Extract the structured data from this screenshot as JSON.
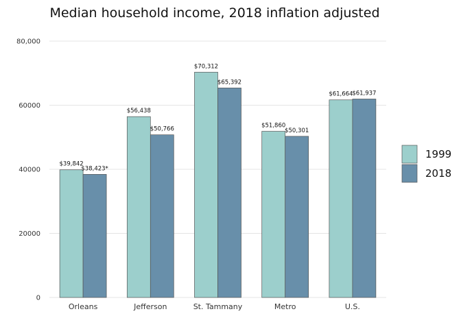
{
  "chart_data": {
    "type": "bar",
    "title": "Median household income, 2018 inflation adjusted",
    "xlabel": "",
    "ylabel": "",
    "categories": [
      "Orleans",
      "Jefferson",
      "St. Tammany",
      "Metro",
      "U.S."
    ],
    "series": [
      {
        "name": "1999",
        "color": "#9ccfcc",
        "values": [
          39842,
          56438,
          70312,
          51860,
          61664
        ],
        "labels": [
          "$39,842",
          "$56,438",
          "$70,312",
          "$51,860",
          "$61,664"
        ]
      },
      {
        "name": "2018",
        "color": "#688faa",
        "values": [
          38423,
          50766,
          65392,
          50301,
          61937
        ],
        "labels": [
          "$38,423*",
          "$50,766",
          "$65,392",
          "$50,301",
          "$61,937"
        ]
      }
    ],
    "ylim": [
      0,
      80000
    ],
    "yticks": [
      0,
      20000,
      40000,
      60000,
      80000
    ],
    "ytick_labels": [
      "0",
      "20000",
      "40000",
      "60000",
      "80,000"
    ],
    "grid": true,
    "legend_position": "right"
  }
}
